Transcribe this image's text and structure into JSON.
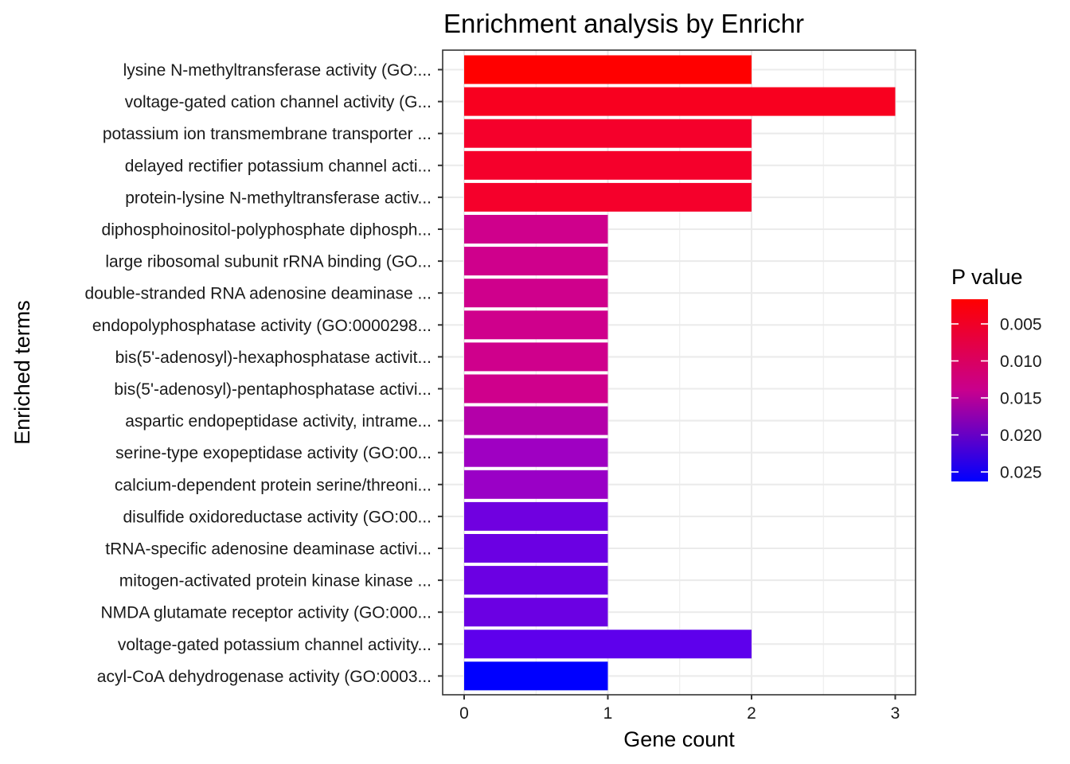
{
  "chart_data": {
    "type": "bar",
    "orientation": "horizontal",
    "title": "Enrichment analysis by Enrichr",
    "xlabel": "Gene count",
    "ylabel": "Enriched terms",
    "xlim": [
      0,
      3
    ],
    "x_ticks": [
      "0",
      "1",
      "2",
      "3"
    ],
    "grid": true,
    "legend": {
      "title": "P value",
      "position": "right",
      "labels": [
        "0.005",
        "0.010",
        "0.015",
        "0.020",
        "0.025"
      ],
      "color_low": "#ff0000",
      "color_high": "#0000ff"
    },
    "categories": [
      "lysine N-methyltransferase activity (GO:...",
      "voltage-gated cation channel activity (G...",
      "potassium ion transmembrane transporter ...",
      "delayed rectifier potassium channel acti...",
      "protein-lysine N-methyltransferase activ...",
      "diphosphoinositol-polyphosphate diphosph...",
      "large ribosomal subunit rRNA binding (GO...",
      "double-stranded RNA adenosine deaminase ...",
      "endopolyphosphatase activity (GO:0000298...",
      "bis(5'-adenosyl)-hexaphosphatase activit...",
      "bis(5'-adenosyl)-pentaphosphatase activi...",
      "aspartic endopeptidase activity, intrame...",
      "serine-type exopeptidase activity (GO:00...",
      "calcium-dependent protein serine/threoni...",
      "disulfide oxidoreductase activity (GO:00...",
      "tRNA-specific adenosine deaminase activi...",
      "mitogen-activated protein kinase kinase ...",
      "NMDA glutamate receptor activity (GO:000...",
      "voltage-gated potassium channel activity...",
      "acyl-CoA dehydrogenase activity (GO:0003..."
    ],
    "values": [
      2,
      3,
      2,
      2,
      2,
      1,
      1,
      1,
      1,
      1,
      1,
      1,
      1,
      1,
      1,
      1,
      1,
      1,
      2,
      1
    ],
    "bar_colors": [
      "#ff0000",
      "#f8001f",
      "#f5002b",
      "#f5002b",
      "#f5002b",
      "#cf008c",
      "#cf008c",
      "#cf008c",
      "#cf008c",
      "#cf008c",
      "#cf008c",
      "#b400a9",
      "#9f00c2",
      "#9a00c6",
      "#7000e0",
      "#6b00e3",
      "#6b00e3",
      "#6b00e3",
      "#5e00ec",
      "#0000ff"
    ]
  }
}
